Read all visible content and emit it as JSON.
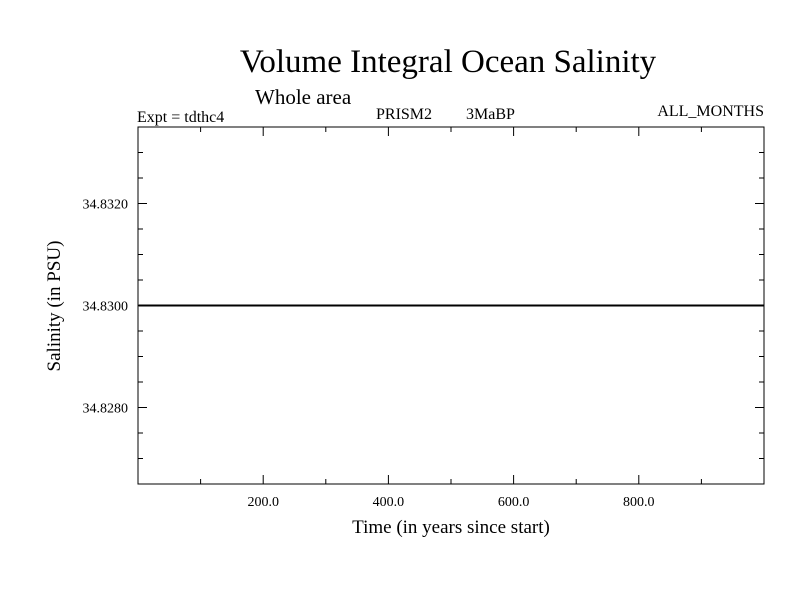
{
  "chart_data": {
    "type": "line",
    "title": "Volume Integral Ocean Salinity",
    "subtitle": "Whole area",
    "experiment": "Expt = tdthc4",
    "run_name": "PRISM2",
    "period": "3MaBP",
    "months": "ALL_MONTHS",
    "xlabel": "Time (in years since start)",
    "ylabel": "Salinity (in PSU)",
    "xlim": [
      0,
      1000
    ],
    "ylim": [
      34.8265,
      34.8335
    ],
    "x_ticks": [
      200,
      400,
      600,
      800
    ],
    "x_tick_labels": [
      "200.0",
      "400.0",
      "600.0",
      "800.0"
    ],
    "y_ticks": [
      34.828,
      34.83,
      34.832
    ],
    "y_tick_labels": [
      "34.8280",
      "34.8300",
      "34.8320"
    ],
    "series": [
      {
        "name": "salinity",
        "x": [
          1,
          1000
        ],
        "values": [
          34.83,
          34.83
        ]
      }
    ]
  }
}
